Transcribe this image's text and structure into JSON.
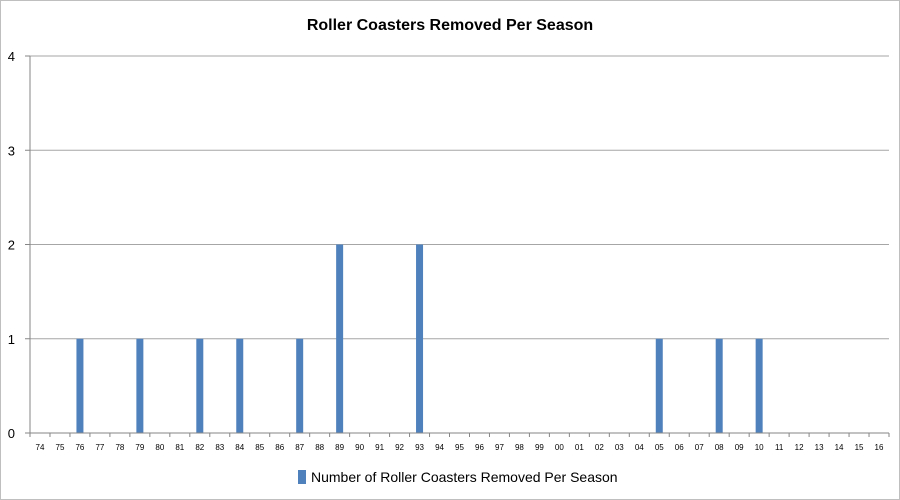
{
  "chart_data": {
    "type": "bar",
    "title": "Roller Coasters Removed Per Season",
    "xlabel": "",
    "ylabel": "",
    "ylim": [
      0,
      4
    ],
    "yticks": [
      "0",
      "1",
      "2",
      "3",
      "4"
    ],
    "grid": true,
    "legend_position": "bottom",
    "categories": [
      "74",
      "75",
      "76",
      "77",
      "78",
      "79",
      "80",
      "81",
      "82",
      "83",
      "84",
      "85",
      "86",
      "87",
      "88",
      "89",
      "90",
      "91",
      "92",
      "93",
      "94",
      "95",
      "96",
      "97",
      "98",
      "99",
      "00",
      "01",
      "02",
      "03",
      "04",
      "05",
      "06",
      "07",
      "08",
      "09",
      "10",
      "11",
      "12",
      "13",
      "14",
      "15",
      "16"
    ],
    "series": [
      {
        "name": "Number of Roller Coasters Removed Per Season",
        "color": "#4f81bd",
        "values": [
          0,
          0,
          1,
          0,
          0,
          1,
          0,
          0,
          1,
          0,
          1,
          0,
          0,
          1,
          0,
          2,
          0,
          0,
          0,
          2,
          0,
          0,
          0,
          0,
          0,
          0,
          0,
          0,
          0,
          0,
          0,
          1,
          0,
          0,
          1,
          0,
          1,
          0,
          0,
          0,
          0,
          0,
          0
        ]
      }
    ]
  }
}
